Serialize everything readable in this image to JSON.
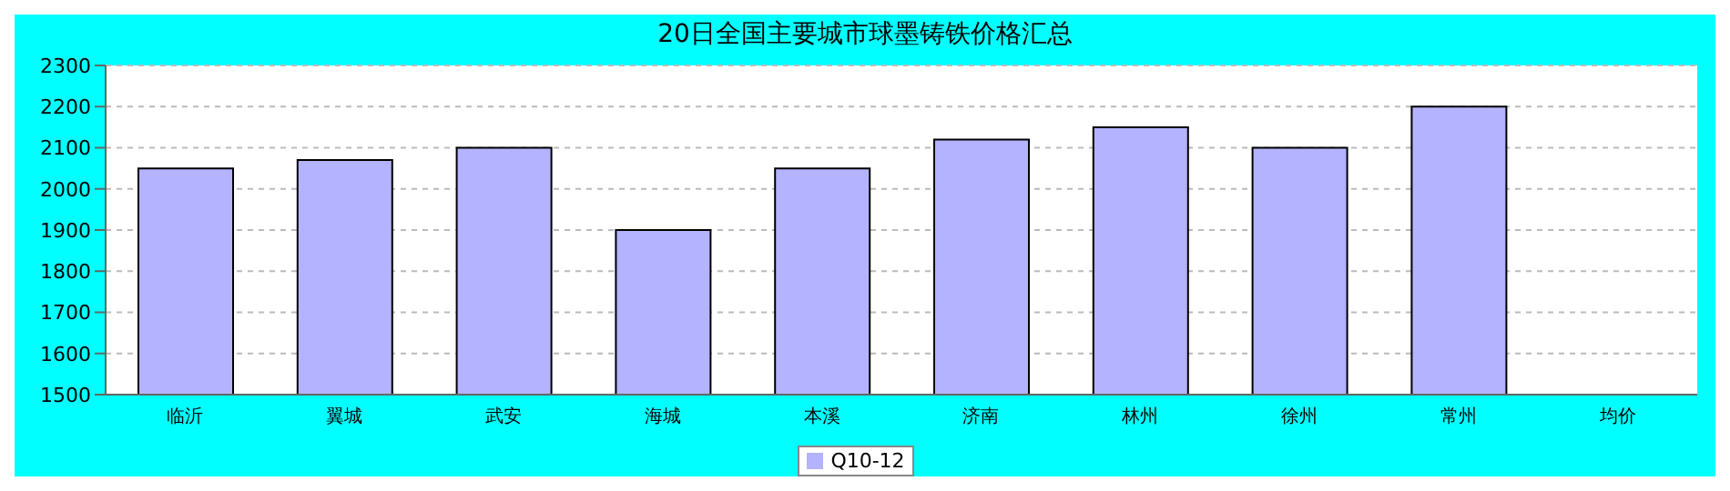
{
  "chart_data": {
    "type": "bar",
    "title": "20日全国主要城市球墨铸铁价格汇总",
    "categories": [
      "临沂",
      "翼城",
      "武安",
      "海城",
      "本溪",
      "济南",
      "林州",
      "徐州",
      "常州",
      "均价"
    ],
    "series": [
      {
        "name": "Q10-12",
        "color": "#b3b3ff",
        "values": [
          2050,
          2070,
          2100,
          1900,
          2050,
          2120,
          2150,
          2100,
          2200,
          null
        ]
      }
    ],
    "ylim": [
      1500,
      2300
    ],
    "yticks": [
      1500,
      1600,
      1700,
      1800,
      1900,
      2000,
      2100,
      2200,
      2300
    ],
    "grid": "y",
    "legend": "bottom"
  }
}
